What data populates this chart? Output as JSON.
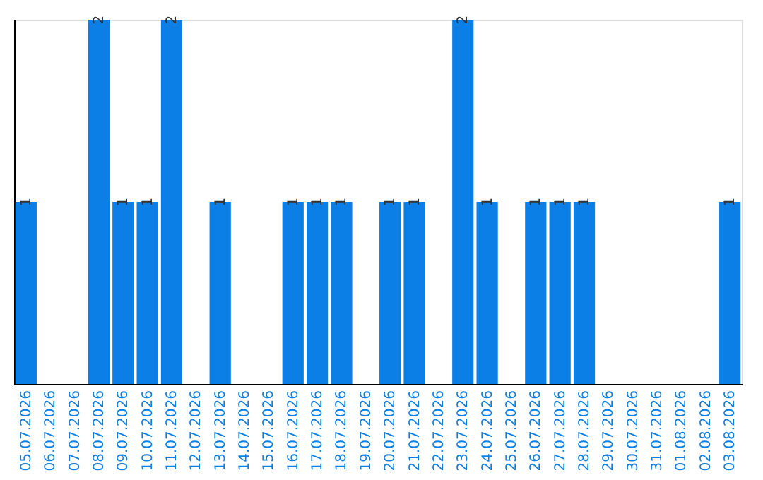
{
  "chart_data": {
    "type": "bar",
    "categories": [
      "05.07.2026",
      "06.07.2026",
      "07.07.2026",
      "08.07.2026",
      "09.07.2026",
      "10.07.2026",
      "11.07.2026",
      "12.07.2026",
      "13.07.2026",
      "14.07.2026",
      "15.07.2026",
      "16.07.2026",
      "17.07.2026",
      "18.07.2026",
      "19.07.2026",
      "20.07.2026",
      "21.07.2026",
      "22.07.2026",
      "23.07.2026",
      "24.07.2026",
      "25.07.2026",
      "26.07.2026",
      "27.07.2026",
      "28.07.2026",
      "29.07.2026",
      "30.07.2026",
      "31.07.2026",
      "01.08.2026",
      "02.08.2026",
      "03.08.2026"
    ],
    "values": [
      1,
      0,
      0,
      2,
      1,
      1,
      2,
      0,
      1,
      0,
      0,
      1,
      1,
      1,
      0,
      1,
      1,
      0,
      2,
      1,
      0,
      1,
      1,
      1,
      0,
      0,
      0,
      0,
      0,
      1
    ],
    "value_labels": [
      "1",
      null,
      null,
      "2",
      "1",
      "1",
      "2",
      null,
      "1",
      null,
      null,
      "1",
      "1",
      "1",
      null,
      "1",
      "1",
      null,
      "2",
      "1",
      null,
      "1",
      "1",
      "1",
      null,
      null,
      null,
      null,
      null,
      "1"
    ],
    "color": "#0b7fe6",
    "ylim": [
      0,
      2
    ],
    "tick_labels": "x",
    "grid": false
  }
}
